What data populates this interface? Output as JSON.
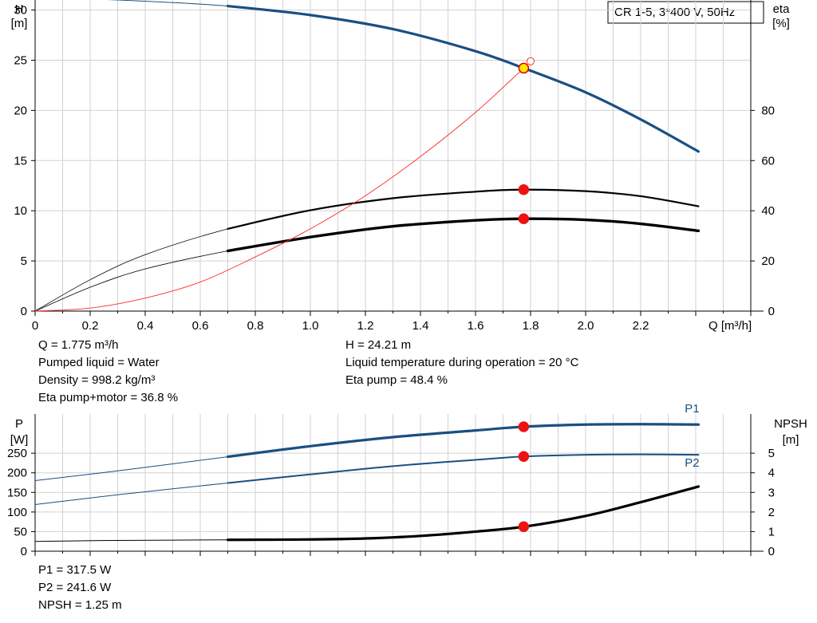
{
  "legend_box": "CR 1-5, 3*400 V, 50Hz",
  "chart_data": [
    {
      "type": "line",
      "xlabel": "Q [m³/h]",
      "ylabel": "H\n[m]",
      "y2label": "eta\n[%]",
      "xlim": [
        0,
        2.6
      ],
      "ylim": [
        0,
        31
      ],
      "y2lim": [
        0,
        124
      ],
      "x_ticks": [
        "0",
        "0.2",
        "0.4",
        "0.6",
        "0.8",
        "1.0",
        "1.2",
        "1.4",
        "1.6",
        "1.8",
        "2.0",
        "2.2"
      ],
      "y_ticks": [
        "0",
        "5",
        "10",
        "15",
        "20",
        "25",
        "30"
      ],
      "y2_ticks": [
        "0",
        "20",
        "40",
        "60",
        "80"
      ],
      "grid": true,
      "series": [
        {
          "id": "H",
          "axis": "left",
          "color": "#1a4f82",
          "width": 3.2,
          "extrap_width": 1,
          "extrap_to": 0.7,
          "x": [
            0,
            0.3,
            0.7,
            1.0,
            1.3,
            1.6,
            1.775,
            2.0,
            2.2,
            2.41
          ],
          "y": [
            31.2,
            31.0,
            30.4,
            29.5,
            28.1,
            25.9,
            24.21,
            21.8,
            19.1,
            15.9
          ]
        },
        {
          "id": "eta_upper",
          "axis": "right",
          "color": "#000000",
          "width": 2.2,
          "extrap_width": 0.8,
          "extrap_to": 0.7,
          "x": [
            0,
            0.2,
            0.4,
            0.7,
            1.0,
            1.3,
            1.6,
            1.775,
            2.0,
            2.2,
            2.41
          ],
          "y": [
            0,
            12.5,
            22.5,
            32.8,
            40.2,
            45.0,
            47.6,
            48.4,
            47.8,
            45.8,
            41.8
          ]
        },
        {
          "id": "eta_lower",
          "axis": "right",
          "color": "#000000",
          "width": 3.4,
          "extrap_width": 0.8,
          "extrap_to": 0.7,
          "x": [
            0,
            0.2,
            0.4,
            0.7,
            1.0,
            1.3,
            1.6,
            1.775,
            2.0,
            2.2,
            2.41
          ],
          "y": [
            0,
            9.5,
            16.8,
            24.0,
            29.5,
            33.8,
            36.2,
            36.8,
            36.4,
            34.8,
            32.0
          ]
        },
        {
          "id": "operating_curve",
          "axis": "left",
          "color": "#ff2a2a",
          "width": 0.9,
          "x": [
            0,
            0.2,
            0.4,
            0.6,
            0.8,
            1.0,
            1.2,
            1.4,
            1.6,
            1.775
          ],
          "y": [
            0,
            0.3,
            1.3,
            2.9,
            5.4,
            8.2,
            11.5,
            15.4,
            19.8,
            24.21
          ]
        }
      ],
      "points": [
        {
          "x": 1.775,
          "y": 24.21,
          "axis": "left",
          "fill": "#ffe800",
          "stroke": "#e00000"
        },
        {
          "x": 1.8,
          "y": 24.9,
          "axis": "left",
          "fill": "#ffffff",
          "stroke": "#ff2a2a",
          "small": true
        },
        {
          "x": 1.775,
          "y": 48.4,
          "axis": "right",
          "fill": "#ee1111",
          "stroke": "#ee1111"
        },
        {
          "x": 1.775,
          "y": 36.8,
          "axis": "right",
          "fill": "#ee1111",
          "stroke": "#ee1111"
        }
      ]
    },
    {
      "type": "line",
      "ylabel": "P\n[W]",
      "y2label": "NPSH\n[m]",
      "xlim": [
        0,
        2.6
      ],
      "ylim": [
        0,
        350
      ],
      "y2lim": [
        0,
        7
      ],
      "y_ticks": [
        "0",
        "50",
        "100",
        "150",
        "200",
        "250"
      ],
      "y2_ticks": [
        "0",
        "1",
        "2",
        "3",
        "4",
        "5"
      ],
      "grid": true,
      "series": [
        {
          "id": "P1",
          "name": "P1",
          "axis": "left",
          "color": "#1a4f82",
          "width": 3.2,
          "extrap_width": 1,
          "extrap_to": 0.7,
          "x": [
            0,
            0.3,
            0.7,
            1.0,
            1.3,
            1.6,
            1.775,
            2.0,
            2.2,
            2.41
          ],
          "y": [
            180,
            205,
            241,
            268,
            291,
            308,
            317.5,
            323,
            324,
            323
          ]
        },
        {
          "id": "P2",
          "name": "P2",
          "axis": "left",
          "color": "#1a4f82",
          "width": 2,
          "extrap_width": 1,
          "extrap_to": 0.7,
          "x": [
            0,
            0.3,
            0.7,
            1.0,
            1.3,
            1.6,
            1.775,
            2.0,
            2.2,
            2.41
          ],
          "y": [
            119,
            144,
            174,
            196,
            217,
            233,
            241.6,
            246,
            247,
            246
          ]
        },
        {
          "id": "NPSH",
          "axis": "right",
          "color": "#000000",
          "width": 3.2,
          "extrap_width": 1,
          "extrap_to": 0.7,
          "x": [
            0,
            0.3,
            0.7,
            1.0,
            1.2,
            1.4,
            1.6,
            1.775,
            2.0,
            2.2,
            2.41
          ],
          "y": [
            0.5,
            0.55,
            0.58,
            0.6,
            0.65,
            0.78,
            1.0,
            1.25,
            1.8,
            2.5,
            3.3
          ]
        }
      ],
      "labels": [
        {
          "series": "P1",
          "text": "P1",
          "x": 2.36,
          "y": 350
        },
        {
          "series": "P2",
          "text": "P2",
          "x": 2.36,
          "y": 212
        }
      ],
      "points": [
        {
          "x": 1.775,
          "y": 317.5,
          "axis": "left",
          "fill": "#ee1111",
          "stroke": "#ee1111"
        },
        {
          "x": 1.775,
          "y": 241.6,
          "axis": "left",
          "fill": "#ee1111",
          "stroke": "#ee1111"
        },
        {
          "x": 1.775,
          "y": 1.25,
          "axis": "right",
          "fill": "#ee1111",
          "stroke": "#ee1111"
        }
      ]
    }
  ],
  "info_top_left": [
    "Q = 1.775 m³/h",
    "Pumped liquid = Water",
    "Density = 998.2 kg/m³",
    "Eta pump+motor = 36.8 %"
  ],
  "info_top_right": [
    "H = 24.21 m",
    "Liquid temperature during operation = 20 °C",
    "Eta pump = 48.4 %"
  ],
  "info_bottom": [
    "P1 = 317.5 W",
    "P2 = 241.6 W",
    "NPSH = 1.25 m"
  ]
}
